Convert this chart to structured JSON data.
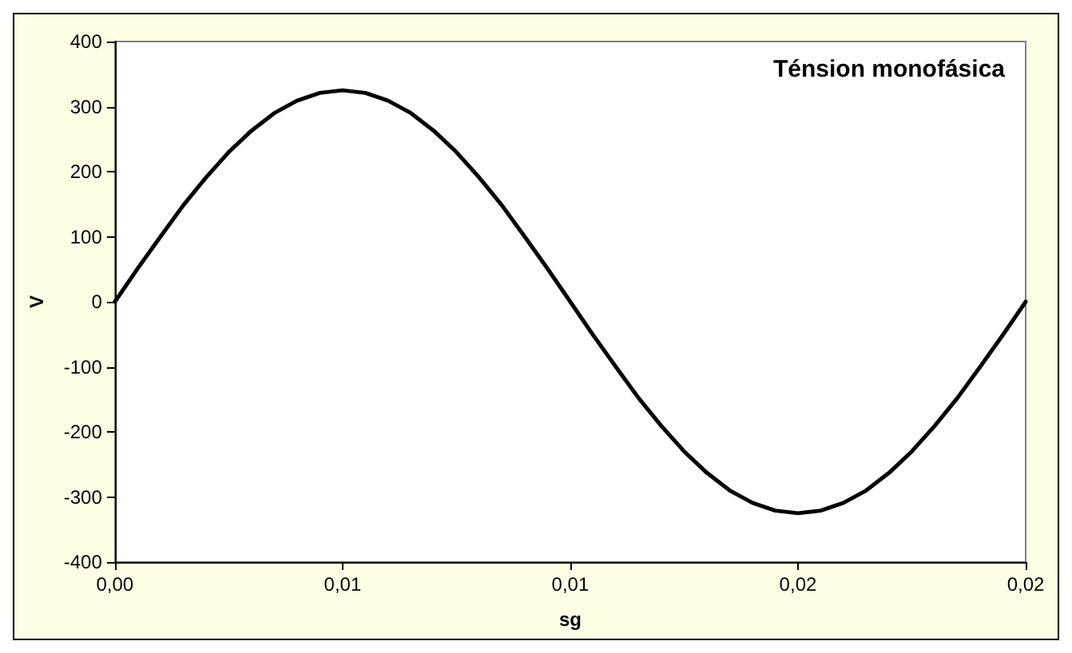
{
  "chart_data": {
    "type": "line",
    "title": "Ténsion monofásica",
    "xlabel": "sg",
    "ylabel": "V",
    "x": [
      0,
      0.0005,
      0.001,
      0.0015,
      0.002,
      0.0025,
      0.003,
      0.0035,
      0.004,
      0.0045,
      0.005,
      0.0055,
      0.006,
      0.0065,
      0.007,
      0.0075,
      0.008,
      0.0085,
      0.009,
      0.0095,
      0.01,
      0.0105,
      0.011,
      0.0115,
      0.012,
      0.0125,
      0.013,
      0.0135,
      0.014,
      0.0145,
      0.015,
      0.0155,
      0.016,
      0.0165,
      0.017,
      0.0175,
      0.018,
      0.0185,
      0.019,
      0.0195,
      0.02
    ],
    "series": [
      {
        "color": "#000000",
        "values": [
          0,
          51,
          100,
          148,
          191,
          230,
          263,
          290,
          309,
          321,
          325,
          321,
          309,
          290,
          263,
          230,
          191,
          148,
          100,
          51,
          0,
          -51,
          -100,
          -148,
          -191,
          -230,
          -263,
          -290,
          -309,
          -321,
          -325,
          -321,
          -309,
          -290,
          -263,
          -230,
          -191,
          -148,
          -100,
          -51,
          0
        ]
      }
    ],
    "xlim": [
      0,
      0.02
    ],
    "xticks": [
      {
        "value": 0,
        "label": "0,00"
      },
      {
        "value": 0.005,
        "label": "0,01"
      },
      {
        "value": 0.01,
        "label": "0,01"
      },
      {
        "value": 0.015,
        "label": "0,02"
      },
      {
        "value": 0.02,
        "label": "0,02"
      }
    ],
    "ylim": [
      -400,
      400
    ],
    "yticks": [
      -400,
      -300,
      -200,
      -100,
      0,
      100,
      200,
      300,
      400
    ],
    "grid": false,
    "marker": "none",
    "line_style": "solid"
  }
}
